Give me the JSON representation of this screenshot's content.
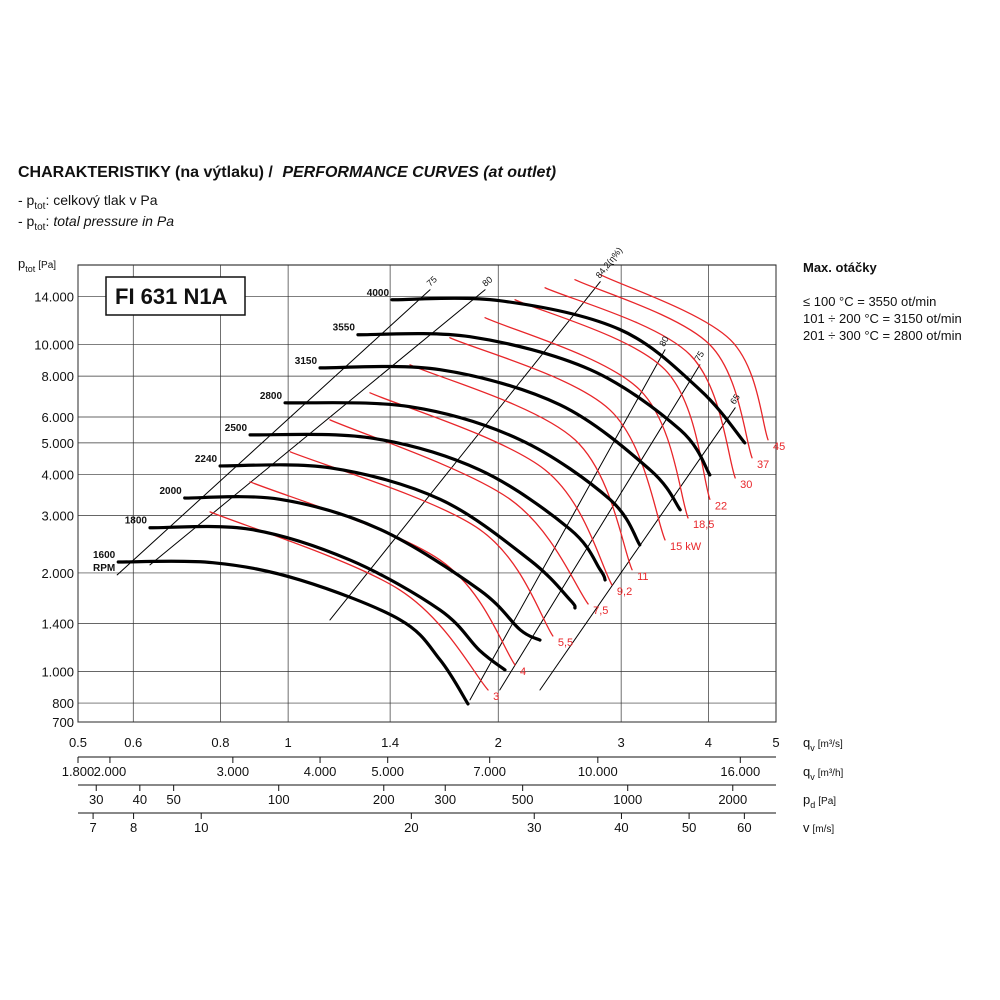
{
  "chart_data": {
    "type": "line",
    "title": [
      "CHARAKTERISTIKY (na výtlaku) /",
      "PERFORMANCE CURVES (at outlet)"
    ],
    "notes": [
      {
        "prefix": "- p",
        "sub": "tot",
        "text": ": celkový tlak v Pa"
      },
      {
        "prefix": "- p",
        "sub": "tot",
        "sep": ":",
        "text": "total pressure in Pa"
      }
    ],
    "model": "FI 631 N1A",
    "side": {
      "title": "Max. otáčky",
      "lines": [
        "≤ 100 °C = 3550 ot/min",
        "101 ÷ 200 °C = 3150 ot/min",
        "201 ÷ 300 °C = 2800 ot/min"
      ]
    },
    "ylabel": {
      "main": "p",
      "sub": "tot",
      "unit": "[Pa]"
    },
    "xlabel": {
      "main": "q",
      "sub": "v",
      "unit": "[m³/s]"
    },
    "xscale": "log",
    "yscale": "log",
    "grid": true,
    "xlim": [
      0.5,
      5
    ],
    "ylim": [
      700,
      17500
    ],
    "xticks": [
      0.5,
      0.6,
      0.8,
      1,
      1.4,
      2,
      3,
      4,
      5
    ],
    "yticks": [
      700,
      800,
      {
        "value": 1000,
        "label": "1.000"
      },
      {
        "value": 1400,
        "label": "1.400"
      },
      {
        "value": 2000,
        "label": "2.000"
      },
      {
        "value": 3000,
        "label": "3.000"
      },
      {
        "value": 4000,
        "label": "4.000"
      },
      {
        "value": 5000,
        "label": "5.000"
      },
      {
        "value": 6000,
        "label": "6.000"
      },
      {
        "value": 8000,
        "label": "8.000"
      },
      {
        "value": 10000,
        "label": "10.000"
      },
      {
        "value": 14000,
        "label": "14.000"
      }
    ],
    "x_axes": [
      {
        "label": {
          "main": "q",
          "sub": "v",
          "unit": "[m³/h]"
        },
        "lim": [
          1800,
          18000
        ],
        "ticks": [
          {
            "value": 1800,
            "label": "1.800"
          },
          {
            "value": 2000,
            "label": "2.000"
          },
          {
            "value": 3000,
            "label": "3.000"
          },
          {
            "value": 4000,
            "label": "4.000"
          },
          {
            "value": 5000,
            "label": "5.000"
          },
          {
            "value": 7000,
            "label": "7.000"
          },
          {
            "value": 10000,
            "label": "10.000"
          },
          {
            "value": 16000,
            "label": "16.000"
          }
        ]
      },
      {
        "label": {
          "main": "p",
          "sub": "d",
          "unit": "[Pa]"
        },
        "lim": [
          26.6,
          2660
        ],
        "ticks": [
          30,
          40,
          50,
          100,
          200,
          300,
          500,
          1000,
          2000
        ]
      },
      {
        "label": {
          "main": "v",
          "unit": "[m/s]"
        },
        "lim": [
          6.66,
          66.6
        ],
        "ticks": [
          7,
          8,
          10,
          20,
          30,
          40,
          50,
          60
        ]
      }
    ],
    "rpm_unit": "RPM",
    "series": [
      {
        "name": "4000",
        "color": "#000000",
        "x": [
          1.409,
          2.01,
          2.99,
          3.89,
          4.51
        ],
        "values": [
          13700,
          13610,
          11100,
          7265,
          5000
        ]
      },
      {
        "name": "3550",
        "color": "#000000",
        "x": [
          1.259,
          1.822,
          2.71,
          3.645,
          4.02
        ],
        "values": [
          10710,
          10560,
          8370,
          5480,
          3990
        ]
      },
      {
        "name": "3150",
        "color": "#000000",
        "x": [
          1.111,
          1.651,
          2.45,
          3.3,
          3.645
        ],
        "values": [
          8480,
          8370,
          6540,
          4135,
          3120
        ]
      },
      {
        "name": "2800",
        "color": "#000000",
        "x": [
          0.99,
          1.495,
          2.15,
          2.89,
          3.19
        ],
        "values": [
          6630,
          6450,
          5110,
          3360,
          2437
        ]
      },
      {
        "name": "2500",
        "color": "#000000",
        "x": [
          0.882,
          1.31,
          1.88,
          2.535,
          2.8,
          2.845
        ],
        "values": [
          5290,
          5180,
          4135,
          2720,
          2045,
          1904
        ]
      },
      {
        "name": "2240",
        "color": "#000000",
        "x": [
          0.799,
          1.148,
          1.651,
          2.22,
          2.535,
          2.576
        ],
        "values": [
          4250,
          4195,
          3360,
          2190,
          1654,
          1563
        ]
      },
      {
        "name": "2000",
        "color": "#000000",
        "x": [
          0.711,
          0.973,
          1.354,
          1.88,
          2.15,
          2.295
        ],
        "values": [
          3390,
          3360,
          2720,
          1775,
          1340,
          1247
        ]
      },
      {
        "name": "1800",
        "color": "#000000",
        "x": [
          0.634,
          0.882,
          1.227,
          1.651,
          1.88,
          2.045
        ],
        "values": [
          2750,
          2720,
          2190,
          1540,
          1160,
          1010
        ]
      },
      {
        "name": "1600",
        "color": "#000000",
        "x": [
          0.571,
          0.78,
          1.04,
          1.445,
          1.651,
          1.81
        ],
        "values": [
          2160,
          2150,
          1904,
          1440,
          1084,
          795
        ]
      }
    ],
    "power_series": [
      {
        "name": "3",
        "color": "#e8262a",
        "x": [
          0.773,
          1.445,
          1.934
        ],
        "values": [
          3075,
          1775,
          877
        ]
      },
      {
        "name": "4",
        "color": "#e8262a",
        "x": [
          0.882,
          1.651,
          2.114
        ],
        "values": [
          3800,
          2190,
          1046
        ]
      },
      {
        "name": "5,5",
        "color": "#e8262a",
        "x": [
          1.007,
          1.88,
          2.395
        ],
        "values": [
          4695,
          2720,
          1283
        ]
      },
      {
        "name": "7,5",
        "color": "#e8262a",
        "x": [
          1.148,
          2.08,
          2.69
        ],
        "values": [
          5880,
          3360,
          1608
        ]
      },
      {
        "name": "9,2",
        "color": "#e8262a",
        "x": [
          1.31,
          2.334,
          2.91
        ],
        "values": [
          7112,
          4135,
          1839
        ]
      },
      {
        "name": "11",
        "color": "#e8262a",
        "x": [
          1.495,
          2.576,
          3.11
        ],
        "values": [
          8665,
          5110,
          2045
        ]
      },
      {
        "name": "15 kW",
        "color": "#e8262a",
        "x": [
          1.705,
          2.89,
          3.467
        ],
        "values": [
          10485,
          6310,
          2524
        ]
      },
      {
        "name": "18,5",
        "color": "#e8262a",
        "x": [
          1.915,
          3.19,
          3.74
        ],
        "values": [
          12075,
          7265,
          2947
        ]
      },
      {
        "name": "22",
        "color": "#e8262a",
        "x": [
          2.114,
          3.467,
          4.02
        ],
        "values": [
          13700,
          8370,
          3360
        ]
      },
      {
        "name": "30",
        "color": "#e8262a",
        "x": [
          2.334,
          3.765,
          4.37
        ],
        "values": [
          14910,
          9300,
          3906
        ]
      },
      {
        "name": "37",
        "color": "#e8262a",
        "x": [
          2.576,
          4.02,
          4.62
        ],
        "values": [
          15780,
          9980,
          4500
        ]
      },
      {
        "name": "45",
        "color": "#e8262a",
        "x": [
          2.8,
          4.3,
          4.87
        ],
        "values": [
          16345,
          10340,
          5110
        ]
      }
    ],
    "efficiency_series": [
      {
        "name": "75",
        "color": "#000000",
        "x": [
          0.569,
          1.597
        ],
        "values": [
          1973,
          14700
        ]
      },
      {
        "name": "80",
        "color": "#000000",
        "x": [
          0.634,
          1.915
        ],
        "values": [
          2117,
          14700
        ]
      },
      {
        "name": "84,2(η%)",
        "color": "#000000",
        "x": [
          1.148,
          2.8
        ],
        "values": [
          1436,
          15560
        ]
      },
      {
        "name": "80",
        "color": "#000000",
        "x": [
          1.822,
          3.467
        ],
        "values": [
          818,
          9630
        ]
      },
      {
        "name": "75",
        "color": "#000000",
        "x": [
          2.01,
          3.89
        ],
        "values": [
          877,
          8665
        ]
      },
      {
        "name": "65",
        "color": "#000000",
        "x": [
          2.295,
          4.37
        ],
        "values": [
          877,
          6400
        ]
      }
    ]
  }
}
